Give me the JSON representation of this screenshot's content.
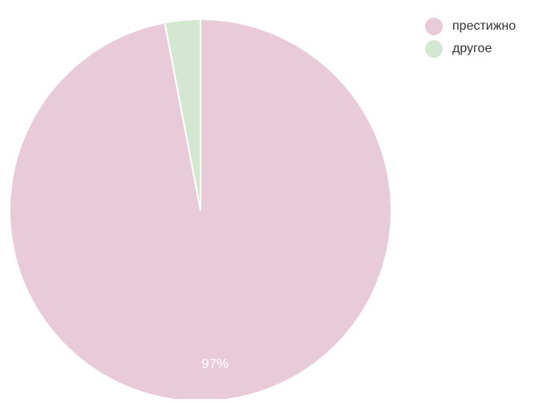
{
  "chart_data": {
    "type": "pie",
    "title": "",
    "categories": [
      "престижно",
      "другое"
    ],
    "values": [
      97,
      3
    ],
    "colors": [
      "#e8cad8",
      "#d3e7d1"
    ],
    "data_labels": [
      "97%",
      ""
    ],
    "legend_position": "top-right",
    "start_angle_deg": 0,
    "direction": "clockwise"
  },
  "legend": {
    "items": [
      {
        "label": "престижно",
        "color": "#e8cad8"
      },
      {
        "label": "другое",
        "color": "#d3e7d1"
      }
    ]
  }
}
